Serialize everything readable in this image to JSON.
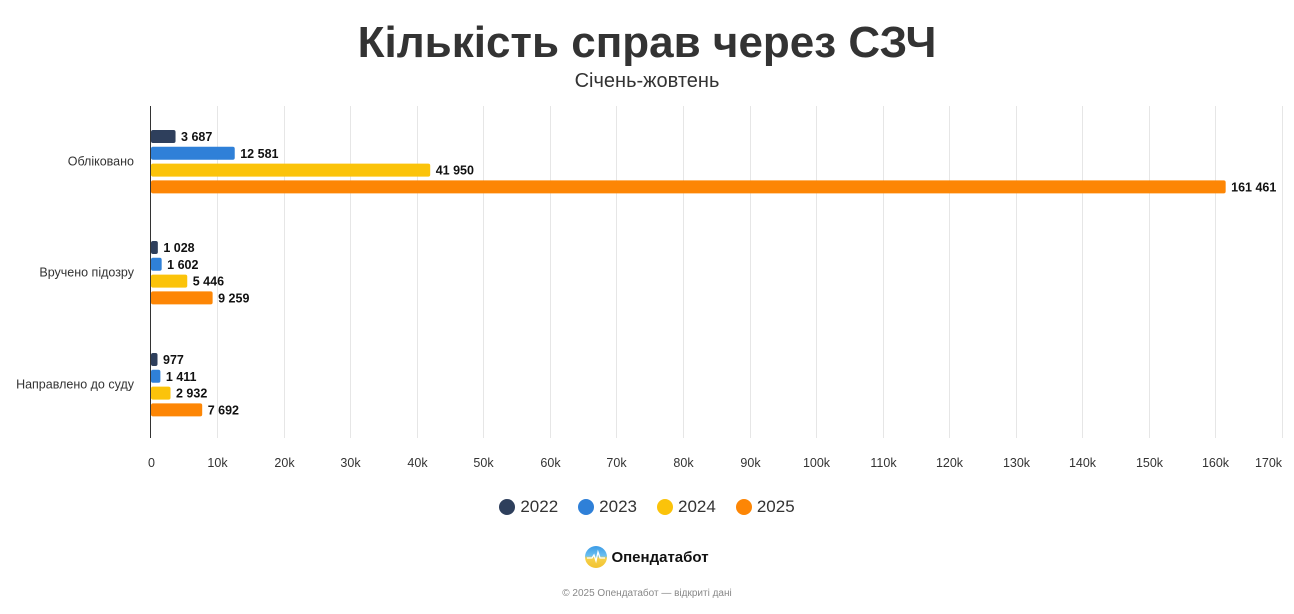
{
  "header": {
    "title": "Кількість справ через СЗЧ",
    "subtitle": "Січень-жовтень"
  },
  "colors": {
    "2022": "#2e3f5c",
    "2023": "#2f80d8",
    "2024": "#fbc30a",
    "2025": "#fd8605",
    "grid": "#e6e6e6",
    "axis": "#333333"
  },
  "legend": [
    {
      "label": "2022",
      "color": "#2e3f5c"
    },
    {
      "label": "2023",
      "color": "#2f80d8"
    },
    {
      "label": "2024",
      "color": "#fbc30a"
    },
    {
      "label": "2025",
      "color": "#fd8605"
    }
  ],
  "footer": {
    "brand": "Опендатабот",
    "copyright": "© 2025 Опендатабот — відкриті дані"
  },
  "chart_data": {
    "type": "bar",
    "orientation": "horizontal",
    "title": "Кількість справ через СЗЧ",
    "subtitle": "Січень-жовтень",
    "xlabel": "",
    "ylabel": "",
    "categories": [
      "Обліковано",
      "Вручено підозру",
      "Направлено до суду"
    ],
    "series": [
      {
        "name": "2022",
        "color": "#2e3f5c",
        "values": [
          3687,
          1028,
          977
        ],
        "labels": [
          "3 687",
          "1 028",
          "977"
        ]
      },
      {
        "name": "2023",
        "color": "#2f80d8",
        "values": [
          12581,
          1602,
          1411
        ],
        "labels": [
          "12 581",
          "1 602",
          "1 411"
        ]
      },
      {
        "name": "2024",
        "color": "#fbc30a",
        "values": [
          41950,
          5446,
          2932
        ],
        "labels": [
          "41 950",
          "5 446",
          "2 932"
        ]
      },
      {
        "name": "2025",
        "color": "#fd8605",
        "values": [
          161461,
          9259,
          7692
        ],
        "labels": [
          "161 461",
          "9 259",
          "7 692"
        ]
      }
    ],
    "xlim": [
      0,
      170000
    ],
    "x_ticks": [
      0,
      10000,
      20000,
      30000,
      40000,
      50000,
      60000,
      70000,
      80000,
      90000,
      100000,
      110000,
      120000,
      130000,
      140000,
      150000,
      160000,
      170000
    ],
    "x_tick_labels": [
      "0",
      "10k",
      "20k",
      "30k",
      "40k",
      "50k",
      "60k",
      "70k",
      "80k",
      "90k",
      "100k",
      "110k",
      "120k",
      "130k",
      "140k",
      "150k",
      "160k",
      "170k"
    ],
    "grid": true,
    "legend_position": "bottom"
  }
}
